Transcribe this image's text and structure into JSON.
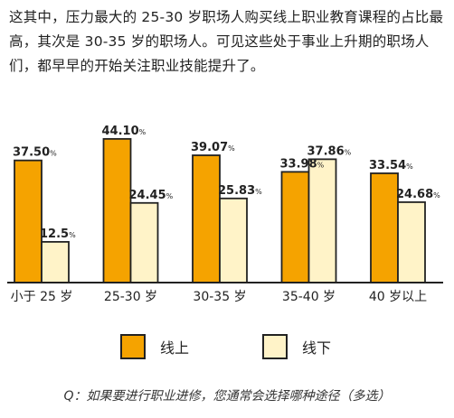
{
  "intro_text": "这其中，压力最大的 25-30 岁职场人购买线上职业教育课程的占比最高，其次是 30-35 岁的职场人。可见这些处于事业上升期的职场人们，都早早的开始关注职业技能提升了。",
  "caption": "Q：如果要进行职业进修，您通常会选择哪种途径（多选）",
  "colors": {
    "online": "#F5A300",
    "offline": "#FFF3C8",
    "stroke": "#222222"
  },
  "chart_data": {
    "type": "bar",
    "categories": [
      "小于 25 岁",
      "25-30 岁",
      "30-35 岁",
      "35-40 岁",
      "40 岁以上"
    ],
    "series": [
      {
        "name": "线上",
        "values": [
          37.5,
          44.1,
          39.07,
          33.98,
          33.54
        ],
        "labels": [
          "37.50%",
          "44.10%",
          "39.07%",
          "33.98%",
          "33.54%"
        ]
      },
      {
        "name": "线下",
        "values": [
          12.5,
          24.45,
          25.83,
          37.86,
          24.68
        ],
        "labels": [
          "12.5%",
          "24.45%",
          "25.83%",
          "37.86%",
          "24.68%"
        ]
      }
    ],
    "ylim": [
      0,
      46
    ],
    "grid": false,
    "legend": "bottom"
  }
}
